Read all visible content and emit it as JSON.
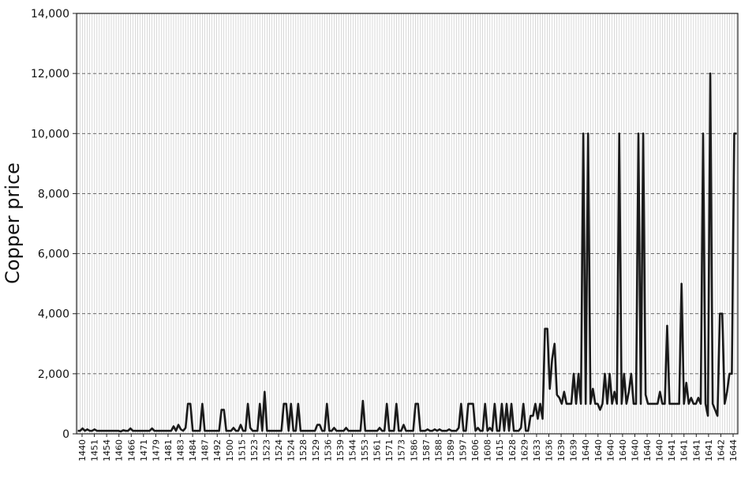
{
  "chart_data": {
    "type": "line",
    "title": "",
    "xlabel": "",
    "ylabel": "Copper price",
    "ylim": [
      0,
      14000
    ],
    "y_ticks": [
      "0",
      "2,000",
      "4,000",
      "6,000",
      "8,000",
      "10,000",
      "12,000",
      "14,000"
    ],
    "y_tick_values": [
      0,
      2000,
      4000,
      6000,
      8000,
      10000,
      12000,
      14000
    ],
    "grid": "horizontal dashed, vertical light",
    "x_tick_labels": [
      "1440",
      "1451",
      "1454",
      "1460",
      "1466",
      "1471",
      "1479",
      "1481",
      "1483",
      "1484",
      "1487",
      "1492",
      "1500",
      "1515",
      "1523",
      "1523",
      "1524",
      "1524",
      "1528",
      "1529",
      "1536",
      "1539",
      "1544",
      "1553",
      "1561",
      "1571",
      "1573",
      "1586",
      "1587",
      "1588",
      "1589",
      "1597",
      "1606",
      "1608",
      "1615",
      "1628",
      "1629",
      "1633",
      "1636",
      "1639",
      "1639",
      "1640",
      "1640",
      "1640",
      "1640",
      "1640",
      "1640",
      "1640",
      "1641",
      "1641",
      "1641",
      "1641",
      "1642",
      "1644"
    ],
    "series": [
      {
        "line_color": "#1a1a1a",
        "values": [
          100,
          100,
          180,
          100,
          150,
          100,
          100,
          150,
          100,
          100,
          100,
          100,
          100,
          100,
          100,
          100,
          100,
          100,
          80,
          120,
          100,
          100,
          180,
          100,
          100,
          100,
          100,
          100,
          100,
          100,
          100,
          180,
          100,
          100,
          100,
          100,
          100,
          100,
          100,
          100,
          250,
          100,
          300,
          150,
          100,
          200,
          1000,
          1000,
          100,
          100,
          100,
          100,
          1000,
          100,
          100,
          100,
          100,
          100,
          100,
          100,
          800,
          800,
          100,
          100,
          100,
          200,
          100,
          100,
          300,
          100,
          100,
          1000,
          200,
          100,
          100,
          100,
          1000,
          100,
          1400,
          100,
          100,
          100,
          100,
          100,
          100,
          100,
          1000,
          1000,
          100,
          1000,
          100,
          100,
          1000,
          100,
          100,
          100,
          100,
          100,
          100,
          100,
          300,
          300,
          100,
          100,
          1000,
          100,
          100,
          200,
          100,
          100,
          100,
          100,
          200,
          100,
          100,
          100,
          100,
          100,
          100,
          1100,
          100,
          100,
          100,
          100,
          100,
          100,
          200,
          100,
          100,
          1000,
          100,
          100,
          100,
          1000,
          100,
          100,
          300,
          100,
          100,
          100,
          100,
          1000,
          1000,
          100,
          100,
          100,
          150,
          100,
          100,
          150,
          100,
          150,
          100,
          100,
          100,
          150,
          100,
          100,
          100,
          200,
          1000,
          100,
          100,
          1000,
          1000,
          1000,
          100,
          200,
          100,
          100,
          1000,
          100,
          200,
          100,
          1000,
          100,
          100,
          1000,
          100,
          1000,
          100,
          1000,
          100,
          100,
          100,
          200,
          1000,
          100,
          100,
          600,
          600,
          1000,
          500,
          1000,
          500,
          3500,
          3500,
          1500,
          2500,
          3000,
          1300,
          1200,
          1000,
          1400,
          1000,
          1000,
          1000,
          2000,
          1000,
          2000,
          1000,
          10000,
          1000,
          10000,
          1000,
          1500,
          1000,
          1000,
          800,
          1000,
          2000,
          1000,
          2000,
          1000,
          1400,
          1000,
          10000,
          1000,
          2000,
          1000,
          1400,
          2000,
          1000,
          1000,
          10000,
          1000,
          10000,
          1300,
          1000,
          1000,
          1000,
          1000,
          1000,
          1400,
          1000,
          1000,
          3600,
          1000,
          1000,
          1000,
          1000,
          1000,
          5000,
          1000,
          1700,
          1000,
          1200,
          1000,
          1000,
          1200,
          1000,
          10000,
          1000,
          600,
          12000,
          1000,
          800,
          600,
          4000,
          4000,
          1000,
          1400,
          2000,
          2000,
          10000,
          10000
        ]
      }
    ]
  }
}
